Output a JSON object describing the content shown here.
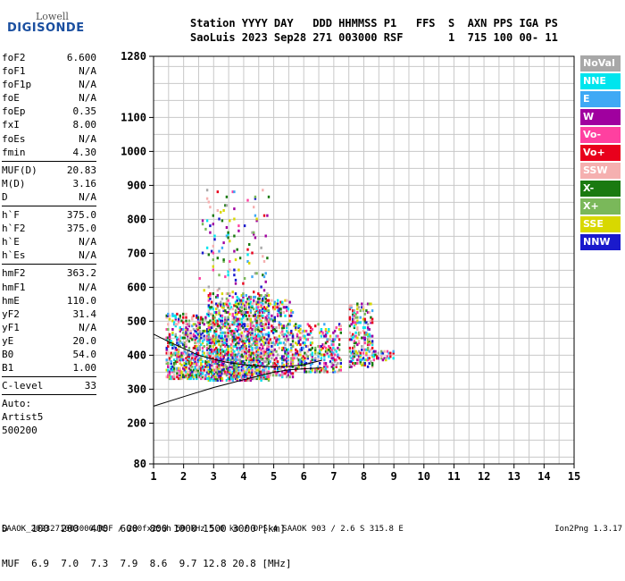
{
  "logo": {
    "line1": "Lowell",
    "line2": "DIGISONDE"
  },
  "header": {
    "line1": "Station YYYY DAY   DDD HHMMSS P1   FFS  S  AXN PPS IGA PS",
    "line2": "SaoLuis 2023 Sep28 271 003000 RSF       1  715 100 00- 11"
  },
  "params": [
    {
      "label": "foF2",
      "value": "6.600"
    },
    {
      "label": "foF1",
      "value": "N/A"
    },
    {
      "label": "foF1p",
      "value": "N/A"
    },
    {
      "label": "foE",
      "value": "N/A"
    },
    {
      "label": "foEp",
      "value": "0.35"
    },
    {
      "label": "fxI",
      "value": "8.00"
    },
    {
      "label": "foEs",
      "value": "N/A"
    },
    {
      "label": "fmin",
      "value": "4.30"
    },
    {
      "sep": true
    },
    {
      "label": "MUF(D)",
      "value": "20.83"
    },
    {
      "label": "M(D)",
      "value": "3.16"
    },
    {
      "label": "D",
      "value": "N/A"
    },
    {
      "sep": true
    },
    {
      "label": "h`F",
      "value": "375.0"
    },
    {
      "label": "h`F2",
      "value": "375.0"
    },
    {
      "label": "h`E",
      "value": "N/A"
    },
    {
      "label": "h`Es",
      "value": "N/A"
    },
    {
      "sep": true
    },
    {
      "label": "hmF2",
      "value": "363.2"
    },
    {
      "label": "hmF1",
      "value": "N/A"
    },
    {
      "label": "hmE",
      "value": "110.0"
    },
    {
      "label": "yF2",
      "value": "31.4"
    },
    {
      "label": "yF1",
      "value": "N/A"
    },
    {
      "label": "yE",
      "value": "20.0"
    },
    {
      "label": "B0",
      "value": "54.0"
    },
    {
      "label": "B1",
      "value": "1.00"
    },
    {
      "sep": true
    },
    {
      "label": "C-level",
      "value": "33"
    },
    {
      "sep": true
    },
    {
      "label": "Auto:",
      "value": ""
    },
    {
      "label": "Artist5",
      "value": ""
    },
    {
      "label": "500200",
      "value": ""
    }
  ],
  "legend": [
    {
      "label": "NoVal",
      "color": "#a8a8a8"
    },
    {
      "label": "NNE",
      "color": "#00e5ee"
    },
    {
      "label": "E",
      "color": "#3fa9f5"
    },
    {
      "label": "W",
      "color": "#a0009f"
    },
    {
      "label": "Vo-",
      "color": "#ff40a0"
    },
    {
      "label": "Vo+",
      "color": "#e8001c"
    },
    {
      "label": "SSW",
      "color": "#f5b0b0"
    },
    {
      "label": "X-",
      "color": "#1a7a10"
    },
    {
      "label": "X+",
      "color": "#7ab85a"
    },
    {
      "label": "SSE",
      "color": "#d8d800"
    },
    {
      "label": "NNW",
      "color": "#1a1acc"
    }
  ],
  "dmuf": {
    "d_line": "D    100  200  400  600  800 1000 1500 3000 [km]",
    "muf_line": "MUF  6.9  7.0  7.3  7.9  8.6  9.7 12.8 20.8 [MHz]"
  },
  "footer": {
    "left": "SAAOK_2023271003000.RSF / 280fx256h 50 kHz 5.0 km / DPS-4 SAAOK 903 / 2.6 S 315.8 E",
    "right": "Ion2Png 1.3.17"
  },
  "chart_data": {
    "type": "scatter",
    "xlim": [
      1,
      15
    ],
    "ylim": [
      80,
      1280
    ],
    "xticks": [
      1,
      2,
      3,
      4,
      5,
      6,
      7,
      8,
      9,
      10,
      11,
      12,
      13,
      14,
      15
    ],
    "yticks": [
      80,
      200,
      300,
      400,
      500,
      600,
      700,
      800,
      900,
      1000,
      1100,
      1280
    ],
    "grid": true,
    "echo_clusters": [
      {
        "xmin": 1.4,
        "xmax": 2.8,
        "ymin": 335,
        "ymax": 530,
        "density": 0.55
      },
      {
        "xmin": 2.8,
        "xmax": 4.8,
        "ymin": 330,
        "ymax": 590,
        "density": 0.65
      },
      {
        "xmin": 4.8,
        "xmax": 5.6,
        "ymin": 340,
        "ymax": 570,
        "density": 0.4
      },
      {
        "xmin": 5.6,
        "xmax": 7.2,
        "ymin": 355,
        "ymax": 500,
        "density": 0.35
      },
      {
        "xmin": 7.5,
        "xmax": 8.3,
        "ymin": 370,
        "ymax": 560,
        "density": 0.45
      },
      {
        "xmin": 8.3,
        "xmax": 9.0,
        "ymin": 390,
        "ymax": 420,
        "density": 0.3
      },
      {
        "xmin": 2.5,
        "xmax": 4.8,
        "ymin": 590,
        "ymax": 900,
        "density": 0.04
      }
    ],
    "profile_curve": {
      "x": [
        1.0,
        2.0,
        3.0,
        4.0,
        5.0,
        5.5,
        6.0,
        6.6
      ],
      "y": [
        250,
        278,
        305,
        328,
        350,
        357,
        360,
        363
      ]
    },
    "trace_curve": {
      "x": [
        1.0,
        1.5,
        2.0,
        2.5,
        3.0,
        3.5,
        4.0,
        4.5,
        5.0,
        5.5,
        6.0,
        6.6
      ],
      "y": [
        462,
        440,
        420,
        400,
        388,
        378,
        372,
        368,
        366,
        367,
        372,
        385
      ]
    }
  }
}
